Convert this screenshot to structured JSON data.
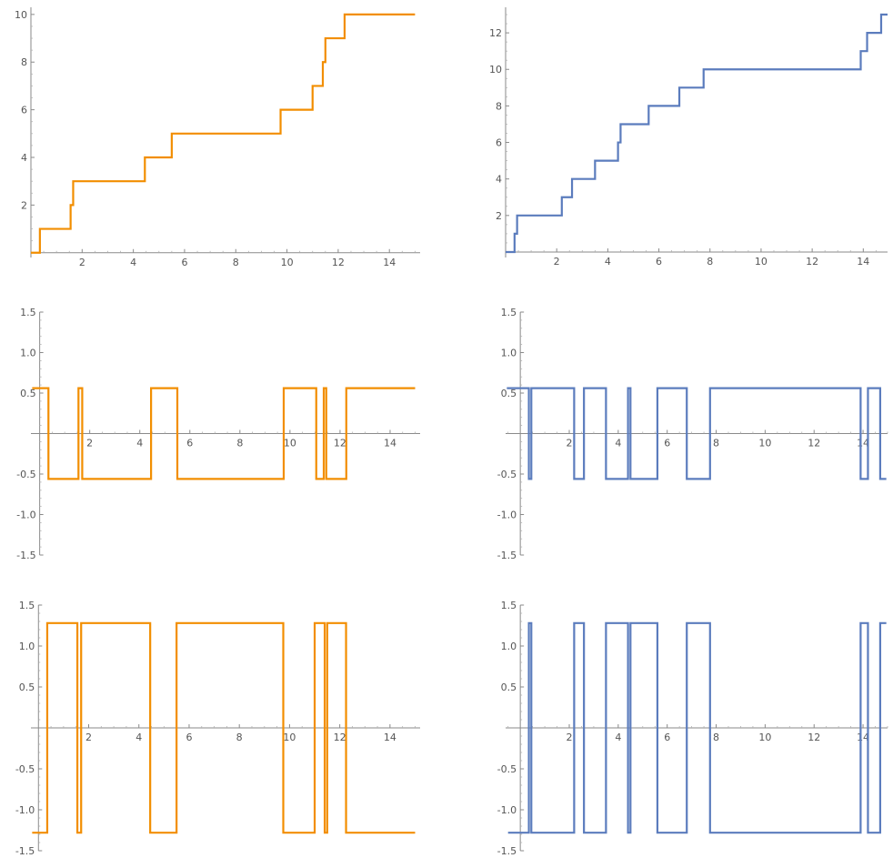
{
  "chart_data": [
    {
      "type": "line",
      "step": true,
      "color": "#f28e00",
      "xlim": [
        0,
        15.2
      ],
      "ylim": [
        -0.2,
        10.3
      ],
      "xticks": [
        2,
        4,
        6,
        8,
        10,
        12,
        14
      ],
      "yticks": [
        2,
        4,
        6,
        8,
        10
      ],
      "points": [
        [
          0,
          0
        ],
        [
          0.35,
          0
        ],
        [
          0.35,
          1
        ],
        [
          1.55,
          1
        ],
        [
          1.55,
          2
        ],
        [
          1.65,
          2
        ],
        [
          1.65,
          3
        ],
        [
          4.45,
          3
        ],
        [
          4.45,
          4
        ],
        [
          5.5,
          4
        ],
        [
          5.5,
          5
        ],
        [
          9.75,
          5
        ],
        [
          9.75,
          6
        ],
        [
          11.0,
          6
        ],
        [
          11.0,
          7
        ],
        [
          11.4,
          7
        ],
        [
          11.4,
          8
        ],
        [
          11.5,
          8
        ],
        [
          11.5,
          9
        ],
        [
          12.25,
          9
        ],
        [
          12.25,
          10
        ],
        [
          15.0,
          10
        ]
      ]
    },
    {
      "type": "line",
      "step": true,
      "color": "#5b7cbd",
      "xlim": [
        0,
        14.95
      ],
      "ylim": [
        -0.3,
        13.4
      ],
      "xticks": [
        2,
        4,
        6,
        8,
        10,
        12,
        14
      ],
      "yticks": [
        2,
        4,
        6,
        8,
        10,
        12
      ],
      "points": [
        [
          0,
          0
        ],
        [
          0.35,
          0
        ],
        [
          0.35,
          1
        ],
        [
          0.45,
          1
        ],
        [
          0.45,
          2
        ],
        [
          2.2,
          2
        ],
        [
          2.2,
          3
        ],
        [
          2.6,
          3
        ],
        [
          2.6,
          4
        ],
        [
          3.5,
          4
        ],
        [
          3.5,
          5
        ],
        [
          4.4,
          5
        ],
        [
          4.4,
          6
        ],
        [
          4.5,
          6
        ],
        [
          4.5,
          7
        ],
        [
          5.6,
          7
        ],
        [
          5.6,
          8
        ],
        [
          6.8,
          8
        ],
        [
          6.8,
          9
        ],
        [
          7.75,
          9
        ],
        [
          7.75,
          10
        ],
        [
          13.9,
          10
        ],
        [
          13.9,
          11
        ],
        [
          14.15,
          11
        ],
        [
          14.15,
          12
        ],
        [
          14.7,
          12
        ],
        [
          14.7,
          13
        ],
        [
          14.95,
          13
        ]
      ]
    },
    {
      "type": "line",
      "step": true,
      "color": "#f28e00",
      "xlim": [
        -0.35,
        15.2
      ],
      "ylim": [
        -1.5,
        1.5
      ],
      "xticks": [
        2,
        4,
        6,
        8,
        10,
        12,
        14
      ],
      "yticks": [
        -1.5,
        -1.0,
        -0.5,
        0.5,
        1.0,
        1.5
      ],
      "ytick_labels": [
        "-1.5",
        "-1.0",
        "-0.5",
        "0.5",
        "1.0",
        "1.5"
      ],
      "points": [
        [
          -0.3,
          0.56
        ],
        [
          0.35,
          0.56
        ],
        [
          0.35,
          -0.56
        ],
        [
          1.55,
          -0.56
        ],
        [
          1.55,
          0.56
        ],
        [
          1.7,
          0.56
        ],
        [
          1.7,
          -0.56
        ],
        [
          4.45,
          -0.56
        ],
        [
          4.45,
          0.56
        ],
        [
          5.5,
          0.56
        ],
        [
          5.5,
          -0.56
        ],
        [
          9.75,
          -0.56
        ],
        [
          9.75,
          0.56
        ],
        [
          11.05,
          0.56
        ],
        [
          11.05,
          -0.56
        ],
        [
          11.35,
          -0.56
        ],
        [
          11.35,
          0.56
        ],
        [
          11.45,
          0.56
        ],
        [
          11.45,
          -0.56
        ],
        [
          12.25,
          -0.56
        ],
        [
          12.25,
          0.56
        ],
        [
          15.0,
          0.56
        ]
      ]
    },
    {
      "type": "line",
      "step": true,
      "color": "#5b7cbd",
      "xlim": [
        -0.6,
        15.0
      ],
      "ylim": [
        -1.5,
        1.5
      ],
      "xticks": [
        2,
        4,
        6,
        8,
        10,
        12,
        14
      ],
      "yticks": [
        -1.5,
        -1.0,
        -0.5,
        0.5,
        1.0,
        1.5
      ],
      "ytick_labels": [
        "-1.5",
        "-1.0",
        "-0.5",
        "0.5",
        "1.0",
        "1.5"
      ],
      "points": [
        [
          -0.55,
          0.56
        ],
        [
          0.35,
          0.56
        ],
        [
          0.35,
          -0.56
        ],
        [
          0.45,
          -0.56
        ],
        [
          0.45,
          0.56
        ],
        [
          2.2,
          0.56
        ],
        [
          2.2,
          -0.56
        ],
        [
          2.6,
          -0.56
        ],
        [
          2.6,
          0.56
        ],
        [
          3.5,
          0.56
        ],
        [
          3.5,
          -0.56
        ],
        [
          4.4,
          -0.56
        ],
        [
          4.4,
          0.56
        ],
        [
          4.5,
          0.56
        ],
        [
          4.5,
          -0.56
        ],
        [
          5.6,
          -0.56
        ],
        [
          5.6,
          0.56
        ],
        [
          6.8,
          0.56
        ],
        [
          6.8,
          -0.56
        ],
        [
          7.75,
          -0.56
        ],
        [
          7.75,
          0.56
        ],
        [
          13.9,
          0.56
        ],
        [
          13.9,
          -0.56
        ],
        [
          14.2,
          -0.56
        ],
        [
          14.2,
          0.56
        ],
        [
          14.7,
          0.56
        ],
        [
          14.7,
          -0.56
        ],
        [
          14.95,
          -0.56
        ]
      ]
    },
    {
      "type": "line",
      "step": true,
      "color": "#f28e00",
      "xlim": [
        -0.3,
        15.2
      ],
      "ylim": [
        -1.5,
        1.5
      ],
      "xticks": [
        2,
        4,
        6,
        8,
        10,
        12,
        14
      ],
      "yticks": [
        -1.5,
        -1.0,
        -0.5,
        0.5,
        1.0,
        1.5
      ],
      "ytick_labels": [
        "-1.5",
        "-1.0",
        "-0.5",
        "0.5",
        "1.0",
        "1.5"
      ],
      "points": [
        [
          -0.25,
          -1.28
        ],
        [
          0.35,
          -1.28
        ],
        [
          0.35,
          1.28
        ],
        [
          1.55,
          1.28
        ],
        [
          1.55,
          -1.28
        ],
        [
          1.7,
          -1.28
        ],
        [
          1.7,
          1.28
        ],
        [
          4.45,
          1.28
        ],
        [
          4.45,
          -1.28
        ],
        [
          5.5,
          -1.28
        ],
        [
          5.5,
          1.28
        ],
        [
          9.75,
          1.28
        ],
        [
          9.75,
          -1.28
        ],
        [
          11.0,
          -1.28
        ],
        [
          11.0,
          1.28
        ],
        [
          11.4,
          1.28
        ],
        [
          11.4,
          -1.28
        ],
        [
          11.5,
          -1.28
        ],
        [
          11.5,
          1.28
        ],
        [
          12.25,
          1.28
        ],
        [
          12.25,
          -1.28
        ],
        [
          15.0,
          -1.28
        ]
      ]
    },
    {
      "type": "line",
      "step": true,
      "color": "#5b7cbd",
      "xlim": [
        -0.6,
        15.0
      ],
      "ylim": [
        -1.5,
        1.5
      ],
      "xticks": [
        2,
        4,
        6,
        8,
        10,
        12,
        14
      ],
      "yticks": [
        -1.5,
        -1.0,
        -0.5,
        0.5,
        1.0,
        1.5
      ],
      "ytick_labels": [
        "-1.5",
        "-1.0",
        "-0.5",
        "0.5",
        "1.0",
        "1.5"
      ],
      "points": [
        [
          -0.5,
          -1.28
        ],
        [
          0.35,
          -1.28
        ],
        [
          0.35,
          1.28
        ],
        [
          0.45,
          1.28
        ],
        [
          0.45,
          -1.28
        ],
        [
          2.2,
          -1.28
        ],
        [
          2.2,
          1.28
        ],
        [
          2.6,
          1.28
        ],
        [
          2.6,
          -1.28
        ],
        [
          3.5,
          -1.28
        ],
        [
          3.5,
          1.28
        ],
        [
          4.4,
          1.28
        ],
        [
          4.4,
          -1.28
        ],
        [
          4.5,
          -1.28
        ],
        [
          4.5,
          1.28
        ],
        [
          5.6,
          1.28
        ],
        [
          5.6,
          -1.28
        ],
        [
          6.8,
          -1.28
        ],
        [
          6.8,
          1.28
        ],
        [
          7.75,
          1.28
        ],
        [
          7.75,
          -1.28
        ],
        [
          13.9,
          -1.28
        ],
        [
          13.9,
          1.28
        ],
        [
          14.2,
          1.28
        ],
        [
          14.2,
          -1.28
        ],
        [
          14.7,
          -1.28
        ],
        [
          14.7,
          1.28
        ],
        [
          14.95,
          1.28
        ]
      ]
    }
  ]
}
